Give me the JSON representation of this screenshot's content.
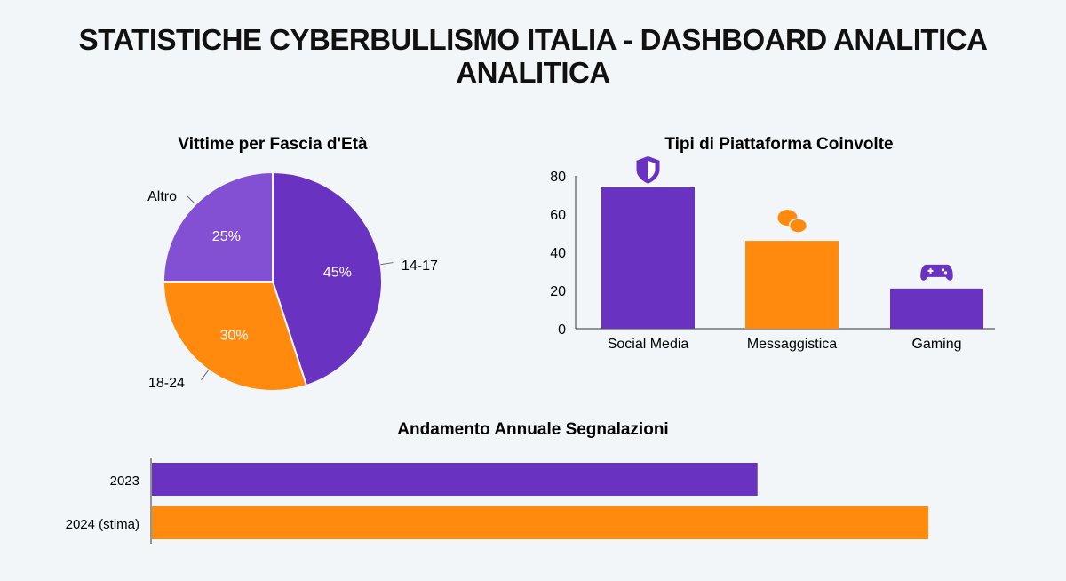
{
  "title": "STATISTICHE CYBERBULLISMO ITALIA - DASHBOARD ANALITICA ANALITICA",
  "colors": {
    "purple": "#6a32c0",
    "orange": "#ff8a0e",
    "light_purple": "#8350d4",
    "background": "#f2f6f9"
  },
  "chart_data": [
    {
      "type": "pie",
      "title": "Vittime per Fascia d'Età",
      "slices": [
        {
          "label": "14-17",
          "value": 45,
          "data_label": "45%",
          "color": "#6a32c0"
        },
        {
          "label": "18-24",
          "value": 30,
          "data_label": "30%",
          "color": "#ff8a0e"
        },
        {
          "label": "Altro",
          "value": 25,
          "data_label": "25%",
          "color": "#8350d4"
        }
      ]
    },
    {
      "type": "bar",
      "title": "Tipi di Piattaforma Coinvolte",
      "categories": [
        "Social Media",
        "Messaggistica",
        "Gaming"
      ],
      "values": [
        74,
        46,
        21
      ],
      "colors": [
        "#6a32c0",
        "#ff8a0e",
        "#6a32c0"
      ],
      "icons": [
        "shield-icon",
        "chat-bubbles-icon",
        "gamepad-icon"
      ],
      "ylim": [
        0,
        80
      ],
      "yticks": [
        0,
        20,
        40,
        60,
        80
      ],
      "grid": false
    },
    {
      "type": "bar",
      "orientation": "horizontal",
      "title": "Andamento Annuale Segnalazioni",
      "categories": [
        "2023",
        "2024 (stima)"
      ],
      "values": [
        78,
        100
      ],
      "colors": [
        "#6a32c0",
        "#ff8a0e"
      ],
      "grid": false
    }
  ]
}
